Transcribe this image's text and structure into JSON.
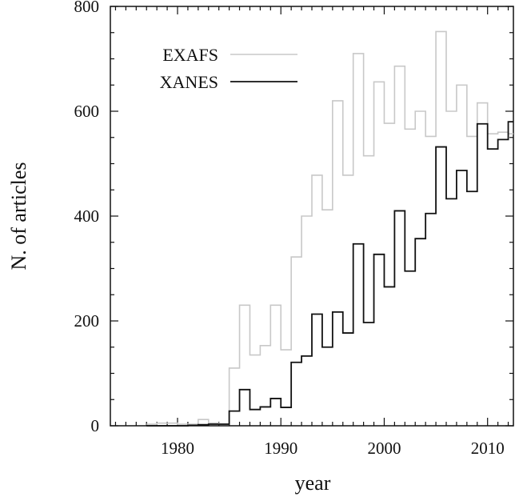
{
  "chart_data": {
    "type": "line",
    "step": true,
    "xlabel": "year",
    "ylabel": "N. of articles",
    "xlim": [
      1973.5,
      2012.5
    ],
    "ylim": [
      0,
      800
    ],
    "xticks": [
      1980,
      1990,
      2000,
      2010
    ],
    "yticks": [
      0,
      200,
      400,
      600,
      800
    ],
    "grid": false,
    "legend": "top-left",
    "series": [
      {
        "name": "EXAFS",
        "color": "#c8c8c8",
        "x": [
          1977,
          1978,
          1979,
          1980,
          1981,
          1982,
          1983,
          1984,
          1985,
          1986,
          1987,
          1988,
          1989,
          1990,
          1991,
          1992,
          1993,
          1994,
          1995,
          1996,
          1997,
          1998,
          1999,
          2000,
          2001,
          2002,
          2003,
          2004,
          2005,
          2006,
          2007,
          2008,
          2009,
          2010,
          2011,
          2012
        ],
        "values": [
          3,
          5,
          5,
          3,
          3,
          12,
          5,
          3,
          110,
          230,
          135,
          153,
          230,
          145,
          322,
          400,
          478,
          412,
          620,
          478,
          710,
          515,
          656,
          577,
          686,
          566,
          600,
          552,
          752,
          600,
          650,
          552,
          616,
          557,
          560,
          557
        ]
      },
      {
        "name": "XANES",
        "color": "#111111",
        "x": [
          1977,
          1978,
          1979,
          1980,
          1981,
          1982,
          1983,
          1984,
          1985,
          1986,
          1987,
          1988,
          1989,
          1990,
          1991,
          1992,
          1993,
          1994,
          1995,
          1996,
          1997,
          1998,
          1999,
          2000,
          2001,
          2002,
          2003,
          2004,
          2005,
          2006,
          2007,
          2008,
          2009,
          2010,
          2011,
          2012
        ],
        "values": [
          0,
          0,
          0,
          0,
          1,
          2,
          3,
          3,
          28,
          69,
          31,
          36,
          52,
          35,
          121,
          133,
          213,
          150,
          217,
          177,
          347,
          197,
          327,
          265,
          410,
          295,
          357,
          405,
          532,
          433,
          487,
          447,
          576,
          528,
          546,
          580
        ]
      }
    ]
  }
}
